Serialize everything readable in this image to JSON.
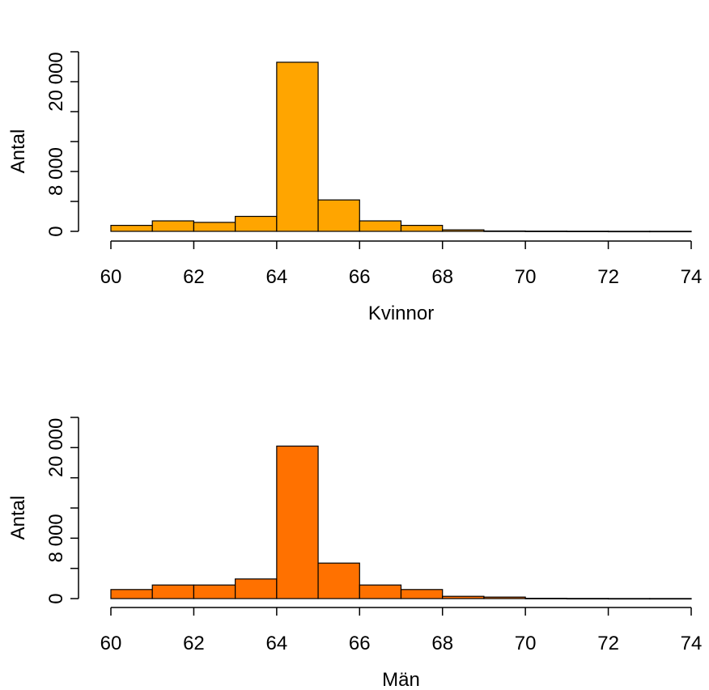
{
  "chart_data": [
    {
      "type": "bar",
      "xlabel": "Kvinnor",
      "ylabel": "Antal",
      "bins": [
        [
          60,
          61
        ],
        [
          61,
          62
        ],
        [
          62,
          63
        ],
        [
          63,
          64
        ],
        [
          64,
          65
        ],
        [
          65,
          66
        ],
        [
          66,
          67
        ],
        [
          67,
          68
        ],
        [
          68,
          69
        ],
        [
          69,
          70
        ],
        [
          70,
          71
        ],
        [
          71,
          72
        ],
        [
          72,
          73
        ],
        [
          73,
          74
        ]
      ],
      "values": [
        800,
        1400,
        1200,
        2000,
        22600,
        4200,
        1400,
        800,
        200,
        50,
        30,
        20,
        10,
        10
      ],
      "xticks": [
        60,
        62,
        64,
        66,
        68,
        70,
        72,
        74
      ],
      "xtick_labels": [
        "60",
        "62",
        "64",
        "66",
        "68",
        "70",
        "72",
        "74"
      ],
      "yticks": [
        0,
        4000,
        8000,
        12000,
        16000,
        20000,
        24000
      ],
      "ytick_labels": [
        "0",
        "",
        "8 000",
        "",
        "",
        "20 000",
        ""
      ],
      "xlim": [
        60,
        74
      ],
      "ylim": [
        0,
        24000
      ],
      "bar_color": "#FFA500"
    },
    {
      "type": "bar",
      "xlabel": "Män",
      "ylabel": "Antal",
      "bins": [
        [
          60,
          61
        ],
        [
          61,
          62
        ],
        [
          62,
          63
        ],
        [
          63,
          64
        ],
        [
          64,
          65
        ],
        [
          65,
          66
        ],
        [
          66,
          67
        ],
        [
          67,
          68
        ],
        [
          68,
          69
        ],
        [
          69,
          70
        ],
        [
          70,
          71
        ],
        [
          71,
          72
        ],
        [
          72,
          73
        ],
        [
          73,
          74
        ]
      ],
      "values": [
        1200,
        1800,
        1800,
        2600,
        20200,
        4700,
        1800,
        1200,
        300,
        200,
        40,
        20,
        10,
        10
      ],
      "xticks": [
        60,
        62,
        64,
        66,
        68,
        70,
        72,
        74
      ],
      "xtick_labels": [
        "60",
        "62",
        "64",
        "66",
        "68",
        "70",
        "72",
        "74"
      ],
      "yticks": [
        0,
        4000,
        8000,
        12000,
        16000,
        20000,
        24000
      ],
      "ytick_labels": [
        "0",
        "",
        "8 000",
        "",
        "",
        "20 000",
        ""
      ],
      "xlim": [
        60,
        74
      ],
      "ylim": [
        0,
        24000
      ],
      "bar_color": "#FF7100"
    }
  ]
}
